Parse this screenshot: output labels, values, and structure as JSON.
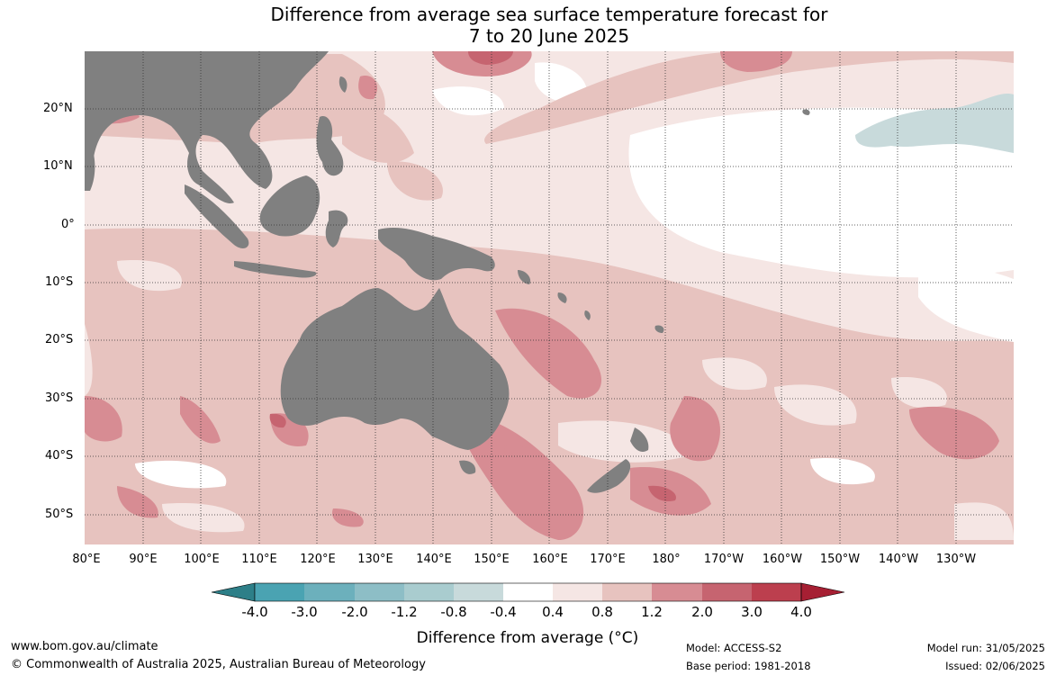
{
  "title_line1": "Difference from average sea surface temperature forecast for",
  "title_line2": "7 to 20 June 2025",
  "lat_labels": [
    "20°N",
    "10°N",
    "0°",
    "10°S",
    "20°S",
    "30°S",
    "40°S",
    "50°S"
  ],
  "lon_labels": [
    "80°E",
    "90°E",
    "100°E",
    "110°E",
    "120°E",
    "130°E",
    "140°E",
    "150°E",
    "160°E",
    "170°E",
    "180°",
    "170°W",
    "160°W",
    "150°W",
    "140°W",
    "130°W"
  ],
  "colorbar": {
    "title": "Difference from average (°C)",
    "ticks": [
      "-4.0",
      "-3.0",
      "-2.0",
      "-1.2",
      "-0.8",
      "-0.4",
      "0.4",
      "0.8",
      "1.2",
      "2.0",
      "3.0",
      "4.0"
    ],
    "colors": [
      "#2d7f88",
      "#4aa3b2",
      "#6cb0bc",
      "#8dbec6",
      "#a9cccf",
      "#c8dadb",
      "#ffffff",
      "#f5e6e4",
      "#e7c3bf",
      "#d78c93",
      "#c66470",
      "#bc3f4e",
      "#a61f33"
    ]
  },
  "map_colors": {
    "land": "#808080",
    "neutral": "#ffffff",
    "warm_0_4": "#f5e6e4",
    "warm_0_8": "#e7c3bf",
    "warm_1_2": "#d78c93",
    "warm_2_0": "#c66470",
    "cool_0_4": "#c8dadb"
  },
  "footer": {
    "website": "www.bom.gov.au/climate",
    "copyright": "© Commonwealth of Australia 2025, Australian Bureau of Meteorology",
    "model": "Model: ACCESS-S2",
    "base_period": "Base period: 1981-2018",
    "model_run": "Model run: 31/05/2025",
    "issued": "Issued: 02/06/2025"
  }
}
